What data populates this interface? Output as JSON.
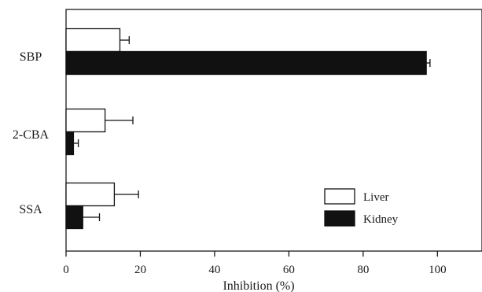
{
  "chart_data": {
    "type": "bar",
    "orientation": "horizontal",
    "categories": [
      "SBP",
      "2-CBA",
      "SSA"
    ],
    "series": [
      {
        "name": "Liver",
        "color": "#ffffff",
        "values": [
          14.5,
          10.5,
          13.0
        ],
        "errors": [
          2.5,
          7.5,
          6.5
        ]
      },
      {
        "name": "Kidney",
        "color": "#111111",
        "values": [
          97.0,
          2.0,
          4.5
        ],
        "errors": [
          1.0,
          1.3,
          4.5
        ]
      }
    ],
    "xlabel": "Inhibition (%)",
    "ylabel": "",
    "xlim": [
      0,
      112
    ],
    "xticks": [
      0,
      20,
      40,
      60,
      80,
      100
    ],
    "legend_position": "lower-right",
    "grid": false
  }
}
